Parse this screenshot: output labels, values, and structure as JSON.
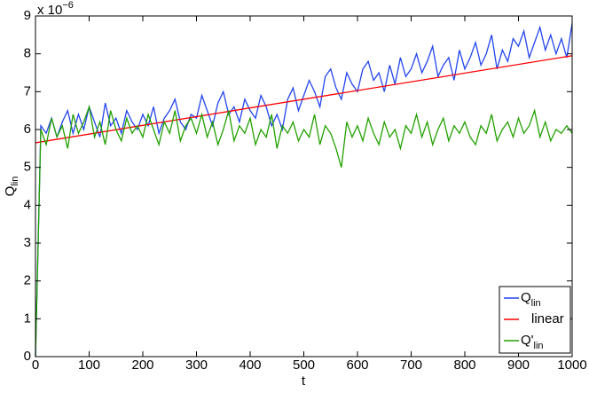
{
  "chart_data": {
    "type": "line",
    "xlabel": "t",
    "ylabel": "Q",
    "ylabel_sub": "lin",
    "multiplier": "x 10",
    "multiplier_exp": "−6",
    "xlim": [
      0,
      1000
    ],
    "xticks": [
      0,
      100,
      200,
      300,
      400,
      500,
      600,
      700,
      800,
      900,
      1000
    ],
    "ylim": [
      0,
      9
    ],
    "yticks": [
      0,
      1,
      2,
      3,
      4,
      5,
      6,
      7,
      8,
      9
    ],
    "legend": "lower right",
    "series": [
      {
        "name": "Q",
        "subscript": "lin",
        "color": "#2244ee",
        "x": [
          0,
          10,
          20,
          30,
          40,
          50,
          60,
          70,
          80,
          90,
          100,
          110,
          120,
          130,
          140,
          150,
          160,
          170,
          180,
          190,
          200,
          210,
          220,
          230,
          240,
          250,
          260,
          270,
          280,
          290,
          300,
          310,
          320,
          330,
          340,
          350,
          360,
          370,
          380,
          390,
          400,
          410,
          420,
          430,
          440,
          450,
          460,
          470,
          480,
          490,
          500,
          510,
          520,
          530,
          540,
          550,
          560,
          570,
          580,
          590,
          600,
          610,
          620,
          630,
          640,
          650,
          660,
          670,
          680,
          690,
          700,
          710,
          720,
          730,
          740,
          750,
          760,
          770,
          780,
          790,
          800,
          810,
          820,
          830,
          840,
          850,
          860,
          870,
          880,
          890,
          900,
          910,
          920,
          930,
          940,
          950,
          960,
          970,
          980,
          990,
          1000
        ],
        "values": [
          0,
          6.1,
          5.9,
          6.3,
          5.8,
          6.2,
          6.5,
          5.9,
          6.4,
          6.0,
          6.6,
          6.2,
          5.8,
          6.7,
          6.1,
          6.3,
          5.9,
          6.5,
          6.2,
          6.0,
          6.4,
          6.1,
          6.6,
          5.9,
          6.3,
          6.5,
          6.8,
          6.2,
          6.0,
          6.4,
          6.3,
          6.9,
          6.5,
          6.1,
          6.7,
          7.0,
          6.4,
          6.6,
          6.2,
          6.8,
          6.5,
          6.3,
          6.9,
          6.6,
          6.1,
          6.4,
          6.0,
          6.8,
          7.1,
          6.5,
          6.9,
          7.3,
          7.0,
          6.6,
          7.4,
          7.6,
          7.1,
          6.8,
          7.5,
          7.2,
          7.0,
          7.6,
          7.8,
          7.3,
          7.5,
          7.0,
          7.7,
          7.2,
          7.9,
          7.4,
          7.6,
          8.0,
          7.5,
          7.8,
          8.2,
          7.4,
          7.7,
          7.9,
          7.3,
          8.1,
          7.6,
          7.9,
          8.3,
          7.7,
          8.0,
          8.5,
          7.6,
          8.1,
          7.8,
          8.4,
          8.2,
          8.6,
          7.9,
          8.3,
          8.7,
          8.1,
          8.5,
          8.0,
          8.4,
          7.9,
          8.8
        ]
      },
      {
        "name": "linear",
        "color": "#ff0000",
        "x": [
          0,
          1000
        ],
        "values": [
          5.65,
          7.95
        ]
      },
      {
        "name": "Q'",
        "subscript": "lin",
        "color": "#22a000",
        "x": [
          0,
          10,
          20,
          30,
          40,
          50,
          60,
          70,
          80,
          90,
          100,
          110,
          120,
          130,
          140,
          150,
          160,
          170,
          180,
          190,
          200,
          210,
          220,
          230,
          240,
          250,
          260,
          270,
          280,
          290,
          300,
          310,
          320,
          330,
          340,
          350,
          360,
          370,
          380,
          390,
          400,
          410,
          420,
          430,
          440,
          450,
          460,
          470,
          480,
          490,
          500,
          510,
          520,
          530,
          540,
          550,
          560,
          570,
          580,
          590,
          600,
          610,
          620,
          630,
          640,
          650,
          660,
          670,
          680,
          690,
          700,
          710,
          720,
          730,
          740,
          750,
          760,
          770,
          780,
          790,
          800,
          810,
          820,
          830,
          840,
          850,
          860,
          870,
          880,
          890,
          900,
          910,
          920,
          930,
          940,
          950,
          960,
          970,
          980,
          990,
          1000
        ],
        "values": [
          0,
          6.0,
          5.6,
          6.3,
          5.8,
          6.1,
          5.5,
          6.4,
          5.9,
          6.2,
          6.6,
          5.8,
          6.2,
          5.6,
          6.5,
          6.0,
          5.7,
          6.3,
          5.9,
          6.1,
          5.8,
          6.4,
          6.0,
          5.6,
          6.2,
          5.9,
          6.5,
          5.7,
          6.1,
          6.3,
          5.9,
          6.4,
          5.8,
          6.2,
          5.6,
          6.0,
          6.5,
          5.7,
          6.1,
          5.9,
          6.3,
          5.6,
          6.0,
          5.8,
          6.4,
          5.5,
          6.1,
          5.9,
          6.2,
          5.7,
          6.0,
          5.8,
          6.4,
          5.6,
          6.1,
          5.9,
          5.5,
          5.0,
          6.2,
          5.8,
          6.1,
          5.7,
          6.3,
          5.9,
          5.6,
          6.2,
          5.8,
          6.0,
          5.5,
          6.1,
          5.9,
          6.4,
          5.8,
          6.2,
          5.6,
          6.0,
          6.3,
          5.7,
          6.1,
          5.9,
          6.2,
          5.8,
          5.6,
          6.1,
          5.9,
          6.4,
          5.7,
          6.0,
          6.2,
          5.8,
          6.3,
          5.9,
          6.1,
          6.5,
          5.8,
          6.2,
          5.7,
          6.0,
          5.9,
          6.1,
          5.9
        ]
      }
    ]
  }
}
